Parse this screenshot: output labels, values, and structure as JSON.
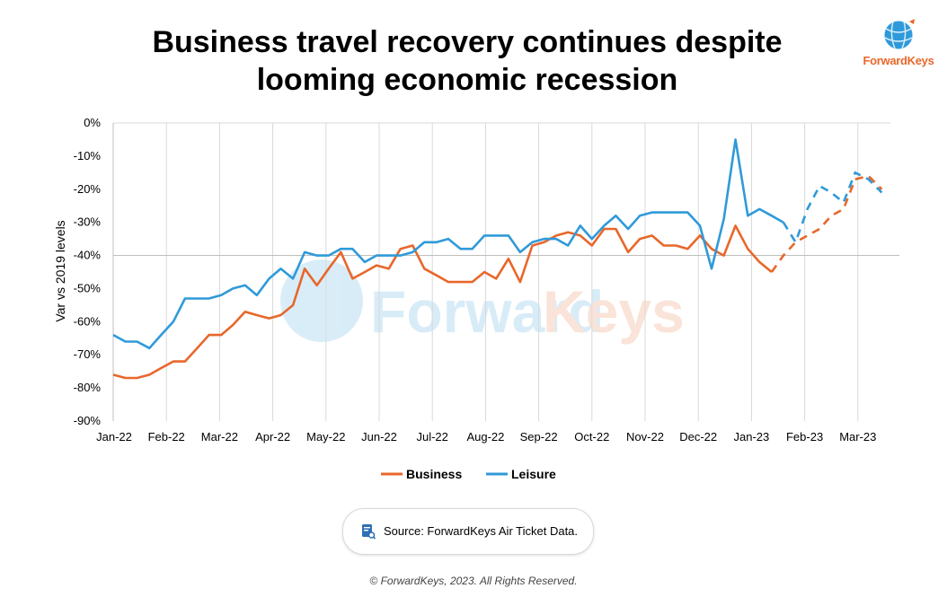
{
  "title_line1": "Business travel recovery continues despite",
  "title_line2": "looming economic recession",
  "logo_text": "ForwardKeys",
  "watermark_text_a": "Forward",
  "watermark_text_b": "Keys",
  "source_text": "Source: ForwardKeys Air Ticket Data.",
  "copyright": "© ForwardKeys, 2023. All Rights Reserved.",
  "colors": {
    "business": "#e8672b",
    "leisure": "#2f9ad9",
    "grid": "#d9d9d9",
    "zero_line": "#bfbfbf"
  },
  "chart_data": {
    "type": "line",
    "ylabel": "Var vs 2019 levels",
    "xlabel": "",
    "ylim": [
      -90,
      0
    ],
    "yticks": [
      0,
      -10,
      -20,
      -30,
      -40,
      -50,
      -60,
      -70,
      -80,
      -90
    ],
    "ytick_labels": [
      "0%",
      "-10%",
      "-20%",
      "-30%",
      "-40%",
      "-50%",
      "-60%",
      "-70%",
      "-80%",
      "-90%"
    ],
    "month_labels": [
      "Jan-22",
      "Feb-22",
      "Mar-22",
      "Apr-22",
      "May-22",
      "Jun-22",
      "Jul-22",
      "Aug-22",
      "Sep-22",
      "Oct-22",
      "Nov-22",
      "Dec-22",
      "Jan-23",
      "Feb-23",
      "Mar-23"
    ],
    "x_range_months": [
      0,
      14.6
    ],
    "reference_line": -40,
    "grid": "vertical",
    "legend": "bottom",
    "series": [
      {
        "name": "Business",
        "color": "#e8672b",
        "actual": [
          [
            0,
            -76
          ],
          [
            0.23,
            -77
          ],
          [
            0.45,
            -77
          ],
          [
            0.68,
            -76
          ],
          [
            0.9,
            -74
          ],
          [
            1.13,
            -72
          ],
          [
            1.35,
            -72
          ],
          [
            1.58,
            -68
          ],
          [
            1.8,
            -64
          ],
          [
            2.03,
            -64
          ],
          [
            2.25,
            -61
          ],
          [
            2.48,
            -57
          ],
          [
            2.7,
            -58
          ],
          [
            2.93,
            -59
          ],
          [
            3.15,
            -58
          ],
          [
            3.38,
            -55
          ],
          [
            3.6,
            -44
          ],
          [
            3.83,
            -49
          ],
          [
            4.05,
            -44
          ],
          [
            4.28,
            -39
          ],
          [
            4.5,
            -47
          ],
          [
            4.73,
            -45
          ],
          [
            4.95,
            -43
          ],
          [
            5.18,
            -44
          ],
          [
            5.4,
            -38
          ],
          [
            5.63,
            -37
          ],
          [
            5.85,
            -44
          ],
          [
            6.08,
            -46
          ],
          [
            6.3,
            -48
          ],
          [
            6.53,
            -48
          ],
          [
            6.75,
            -48
          ],
          [
            6.98,
            -45
          ],
          [
            7.2,
            -47
          ],
          [
            7.43,
            -41
          ],
          [
            7.65,
            -48
          ],
          [
            7.88,
            -37
          ],
          [
            8.1,
            -36
          ],
          [
            8.33,
            -34
          ],
          [
            8.55,
            -33
          ],
          [
            8.78,
            -34
          ],
          [
            9.0,
            -37
          ],
          [
            9.23,
            -32
          ],
          [
            9.45,
            -32
          ],
          [
            9.68,
            -39
          ],
          [
            9.9,
            -35
          ],
          [
            10.13,
            -34
          ],
          [
            10.35,
            -37
          ],
          [
            10.58,
            -37
          ],
          [
            10.8,
            -38
          ],
          [
            11.03,
            -34
          ],
          [
            11.25,
            -38
          ],
          [
            11.48,
            -40
          ],
          [
            11.7,
            -31
          ],
          [
            11.93,
            -38
          ],
          [
            12.15,
            -42
          ],
          [
            12.38,
            -45
          ]
        ],
        "forecast": [
          [
            12.38,
            -45
          ],
          [
            12.6,
            -40
          ],
          [
            12.83,
            -36
          ],
          [
            13.05,
            -34
          ],
          [
            13.28,
            -32
          ],
          [
            13.5,
            -28
          ],
          [
            13.73,
            -26
          ],
          [
            13.95,
            -17
          ],
          [
            14.2,
            -16
          ],
          [
            14.45,
            -20
          ]
        ]
      },
      {
        "name": "Leisure",
        "color": "#2f9ad9",
        "actual": [
          [
            0,
            -64
          ],
          [
            0.23,
            -66
          ],
          [
            0.45,
            -66
          ],
          [
            0.68,
            -68
          ],
          [
            0.9,
            -64
          ],
          [
            1.13,
            -60
          ],
          [
            1.35,
            -53
          ],
          [
            1.58,
            -53
          ],
          [
            1.8,
            -53
          ],
          [
            2.03,
            -52
          ],
          [
            2.25,
            -50
          ],
          [
            2.48,
            -49
          ],
          [
            2.7,
            -52
          ],
          [
            2.93,
            -47
          ],
          [
            3.15,
            -44
          ],
          [
            3.38,
            -47
          ],
          [
            3.6,
            -39
          ],
          [
            3.83,
            -40
          ],
          [
            4.05,
            -40
          ],
          [
            4.28,
            -38
          ],
          [
            4.5,
            -38
          ],
          [
            4.73,
            -42
          ],
          [
            4.95,
            -40
          ],
          [
            5.18,
            -40
          ],
          [
            5.4,
            -40
          ],
          [
            5.63,
            -39
          ],
          [
            5.85,
            -36
          ],
          [
            6.08,
            -36
          ],
          [
            6.3,
            -35
          ],
          [
            6.53,
            -38
          ],
          [
            6.75,
            -38
          ],
          [
            6.98,
            -34
          ],
          [
            7.2,
            -34
          ],
          [
            7.43,
            -34
          ],
          [
            7.65,
            -39
          ],
          [
            7.88,
            -36
          ],
          [
            8.1,
            -35
          ],
          [
            8.33,
            -35
          ],
          [
            8.55,
            -37
          ],
          [
            8.78,
            -31
          ],
          [
            9.0,
            -35
          ],
          [
            9.23,
            -31
          ],
          [
            9.45,
            -28
          ],
          [
            9.68,
            -32
          ],
          [
            9.9,
            -28
          ],
          [
            10.13,
            -27
          ],
          [
            10.35,
            -27
          ],
          [
            10.58,
            -27
          ],
          [
            10.8,
            -27
          ],
          [
            11.03,
            -31
          ],
          [
            11.25,
            -44
          ],
          [
            11.48,
            -29
          ],
          [
            11.7,
            -5
          ],
          [
            11.93,
            -28
          ],
          [
            12.15,
            -26
          ],
          [
            12.38,
            -28
          ],
          [
            12.6,
            -30
          ]
        ],
        "forecast": [
          [
            12.6,
            -30
          ],
          [
            12.83,
            -36
          ],
          [
            13.05,
            -26
          ],
          [
            13.28,
            -19
          ],
          [
            13.5,
            -21
          ],
          [
            13.73,
            -24
          ],
          [
            13.95,
            -15
          ],
          [
            14.2,
            -17
          ],
          [
            14.45,
            -21
          ]
        ]
      }
    ]
  }
}
